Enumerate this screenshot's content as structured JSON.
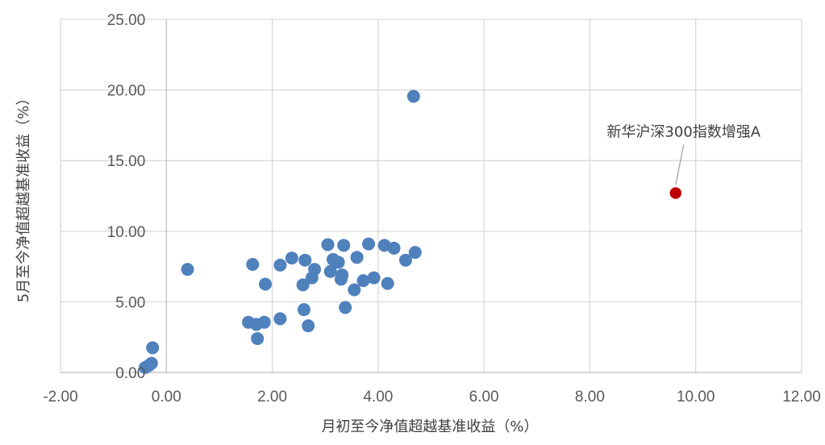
{
  "chart_data": {
    "type": "scatter",
    "xlabel": "月初至今净值超越基准收益（%）",
    "ylabel": "5月至今净值超越基准收益（%）",
    "xlim": [
      -2,
      12
    ],
    "ylim": [
      0,
      25
    ],
    "x_ticks": [
      "-2.00",
      "0.00",
      "2.00",
      "4.00",
      "6.00",
      "8.00",
      "10.00",
      "12.00"
    ],
    "y_ticks": [
      "0.00",
      "5.00",
      "10.00",
      "15.00",
      "20.00",
      "25.00"
    ],
    "grid": true,
    "series": [
      {
        "color": "#4f81bd",
        "points": [
          [
            4.67,
            19.55
          ],
          [
            -0.4,
            0.35
          ],
          [
            -0.33,
            0.5
          ],
          [
            -0.28,
            0.65
          ],
          [
            -0.26,
            1.75
          ],
          [
            0.4,
            7.3
          ],
          [
            1.55,
            3.55
          ],
          [
            1.63,
            7.65
          ],
          [
            1.7,
            3.4
          ],
          [
            1.72,
            2.4
          ],
          [
            1.85,
            3.55
          ],
          [
            1.87,
            6.25
          ],
          [
            2.15,
            3.8
          ],
          [
            2.15,
            7.6
          ],
          [
            2.37,
            8.1
          ],
          [
            2.58,
            6.2
          ],
          [
            2.6,
            4.45
          ],
          [
            2.62,
            7.95
          ],
          [
            2.68,
            3.3
          ],
          [
            2.75,
            6.7
          ],
          [
            2.8,
            7.3
          ],
          [
            3.05,
            9.05
          ],
          [
            3.1,
            7.15
          ],
          [
            3.15,
            8.0
          ],
          [
            3.25,
            7.8
          ],
          [
            3.3,
            6.6
          ],
          [
            3.32,
            6.9
          ],
          [
            3.35,
            9.0
          ],
          [
            3.38,
            4.6
          ],
          [
            3.55,
            5.85
          ],
          [
            3.6,
            8.15
          ],
          [
            3.72,
            6.5
          ],
          [
            3.82,
            9.1
          ],
          [
            3.92,
            6.7
          ],
          [
            4.12,
            9.0
          ],
          [
            4.18,
            6.3
          ],
          [
            4.3,
            8.8
          ],
          [
            4.52,
            7.95
          ],
          [
            4.7,
            8.5
          ]
        ]
      },
      {
        "color": "#c00000",
        "points": [
          [
            9.62,
            12.7
          ]
        ]
      }
    ],
    "annotations": [
      {
        "text": "新华沪深300指数增强A",
        "x": 9.62,
        "y": 12.7
      }
    ]
  }
}
